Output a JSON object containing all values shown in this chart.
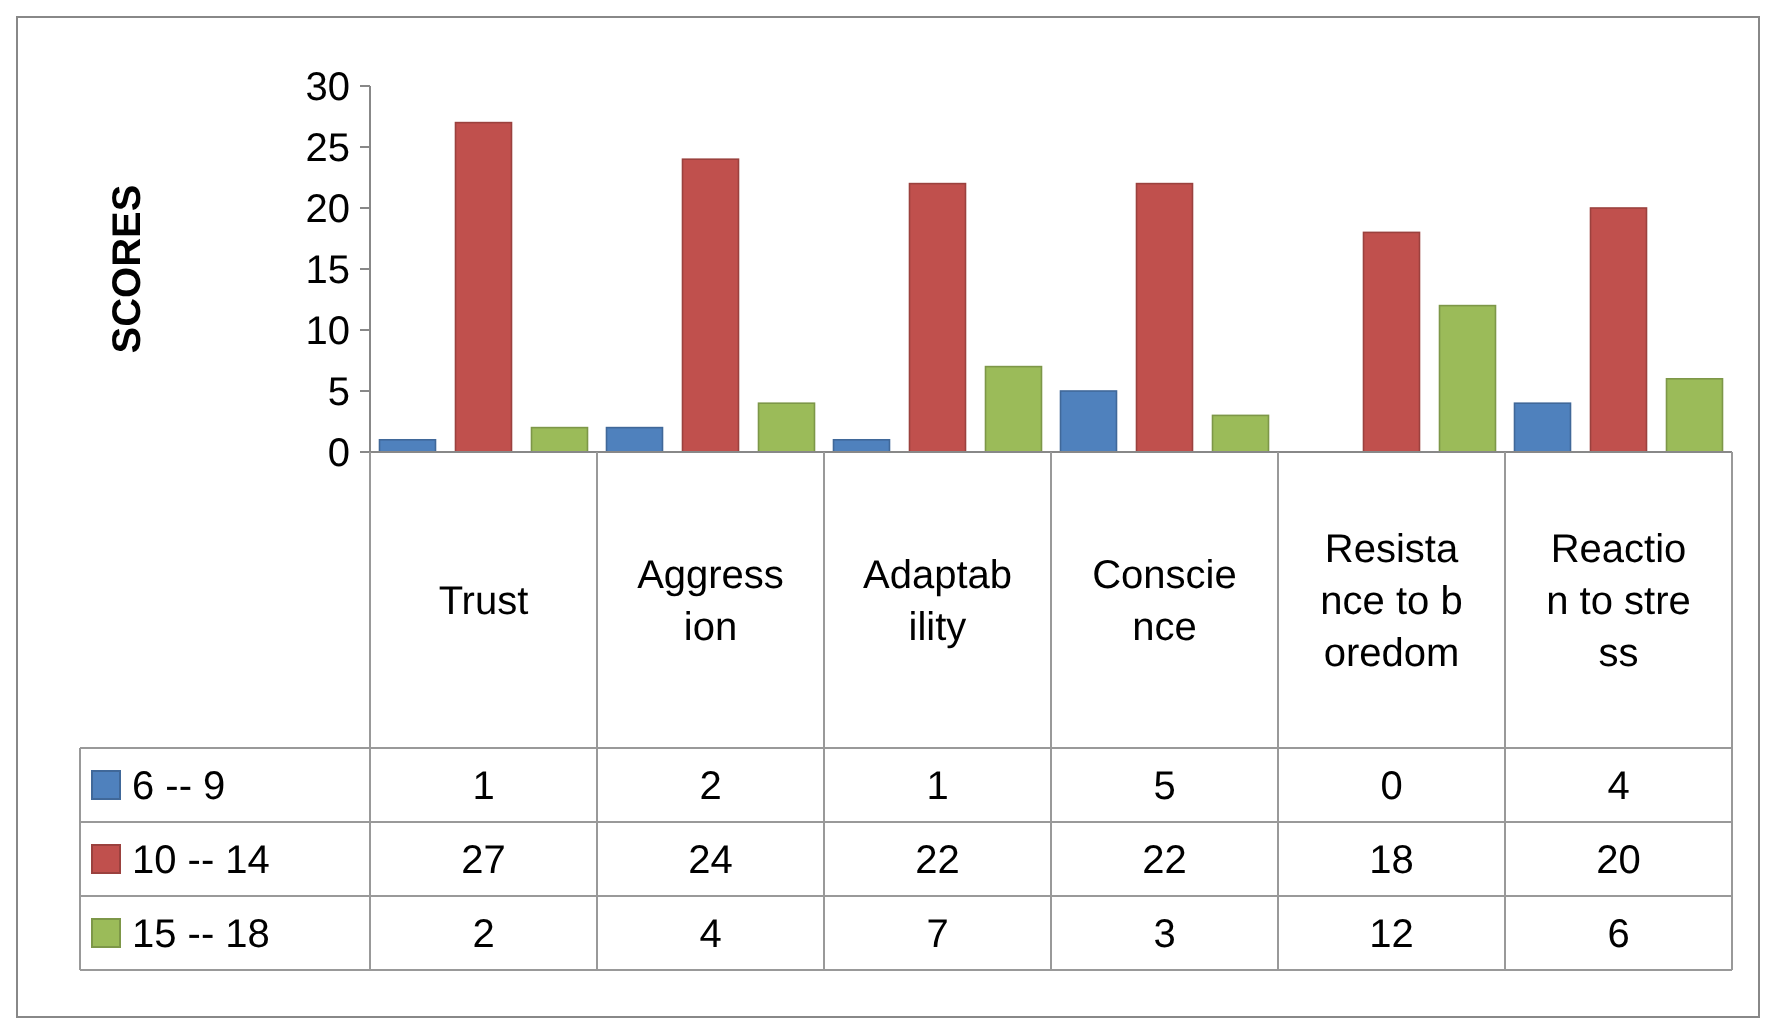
{
  "chart_data": {
    "type": "bar",
    "ylabel": "SCORES",
    "categories": [
      "Trust",
      "Aggression",
      "Adaptability",
      "Conscience",
      "Resistance to boredom",
      "Reaction to stress"
    ],
    "series": [
      {
        "name": "6 -- 9",
        "color": "#4f81bd",
        "values": [
          1,
          2,
          1,
          5,
          0,
          4
        ]
      },
      {
        "name": "10 -- 14",
        "color": "#c0504d",
        "values": [
          27,
          24,
          22,
          22,
          18,
          20
        ]
      },
      {
        "name": "15 -- 18",
        "color": "#9bbb59",
        "values": [
          2,
          4,
          7,
          3,
          12,
          6
        ]
      }
    ],
    "ylim": [
      0,
      30
    ],
    "yticks": [
      0,
      5,
      10,
      15,
      20,
      25,
      30
    ],
    "grid": false,
    "data_labels": true,
    "legend": "bottom left"
  }
}
